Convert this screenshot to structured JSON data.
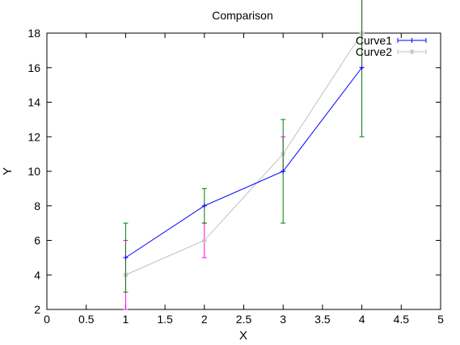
{
  "chart_data": {
    "type": "line",
    "title": "Comparison",
    "xlabel": "X",
    "ylabel": "Y",
    "xlim": [
      0,
      5
    ],
    "ylim": [
      2,
      18
    ],
    "xticks": [
      0,
      0.5,
      1,
      1.5,
      2,
      2.5,
      3,
      3.5,
      4,
      4.5,
      5
    ],
    "xtick_labels": [
      "0",
      "0.5",
      "1",
      "1.5",
      "2",
      "2.5",
      "3",
      "3.5",
      "4",
      "4.5",
      "5"
    ],
    "yticks": [
      2,
      4,
      6,
      8,
      10,
      12,
      14,
      16,
      18
    ],
    "ytick_labels": [
      "2",
      "4",
      "6",
      "8",
      "10",
      "12",
      "14",
      "16",
      "18"
    ],
    "grid": false,
    "legend_position": "top-right",
    "series": [
      {
        "name": "Curve1",
        "color": "#0000ff",
        "errorbar_color": "#008000",
        "marker": "plus",
        "x": [
          1,
          2,
          3,
          4
        ],
        "y": [
          5,
          8,
          10,
          16
        ],
        "yerr": [
          2,
          1,
          3,
          4
        ]
      },
      {
        "name": "Curve2",
        "color": "#c0c0c0",
        "errorbar_color": "#ff00ff",
        "marker": "asterisk",
        "x": [
          1,
          2,
          3,
          4
        ],
        "y": [
          4,
          6,
          11,
          18
        ],
        "yerr": [
          2,
          1,
          1,
          2
        ]
      }
    ]
  }
}
